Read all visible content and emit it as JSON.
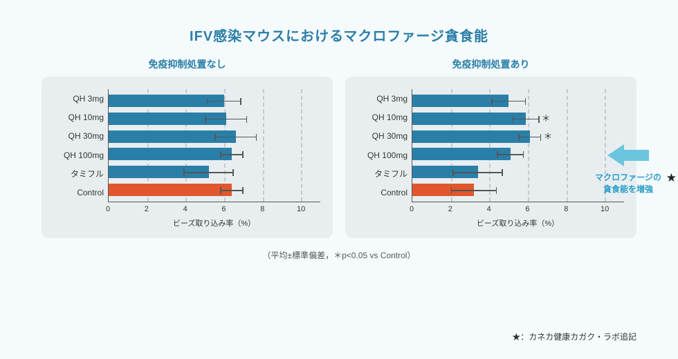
{
  "title": "IFV感染マウスにおけるマクロファージ貪食能",
  "footnote": "（平均±標準偏差，＊p<0.05 vs Control）",
  "star_note": "★：カネカ健康カガク・ラボ追記",
  "callout_line1": "マクロファージの",
  "callout_line2": "貪食能を増強",
  "axis": {
    "xlabel": "ビーズ取り込み率（%）",
    "xmax": 11,
    "ticks": [
      0,
      2,
      4,
      6,
      8,
      10
    ]
  },
  "colors": {
    "bar_main": "#2a7fa8",
    "bar_control": "#e0572e",
    "panel_bg": "#e8eef0",
    "page_bg": "#f5fafc",
    "title": "#2a7fa8",
    "arrow": "#6bc5dd",
    "grid": "#c5c9cb"
  },
  "categories": [
    "QH 3mg",
    "QH 10mg",
    "QH 30mg",
    "QH 100mg",
    "タミフル",
    "Control"
  ],
  "left": {
    "subtitle": "免疫抑制処置なし",
    "values": [
      6.0,
      6.1,
      6.6,
      6.4,
      5.2,
      6.4
    ],
    "errors": [
      0.9,
      1.1,
      1.1,
      0.6,
      1.3,
      0.6
    ],
    "sig": [
      "",
      "",
      "",
      "",
      "",
      ""
    ],
    "control_index": 5
  },
  "right": {
    "subtitle": "免疫抑制処置あり",
    "values": [
      5.0,
      5.9,
      6.1,
      5.1,
      3.4,
      3.2
    ],
    "errors": [
      0.9,
      0.7,
      0.6,
      0.7,
      1.3,
      1.2
    ],
    "sig": [
      "",
      "＊",
      "＊",
      "",
      "",
      ""
    ],
    "control_index": 5
  }
}
